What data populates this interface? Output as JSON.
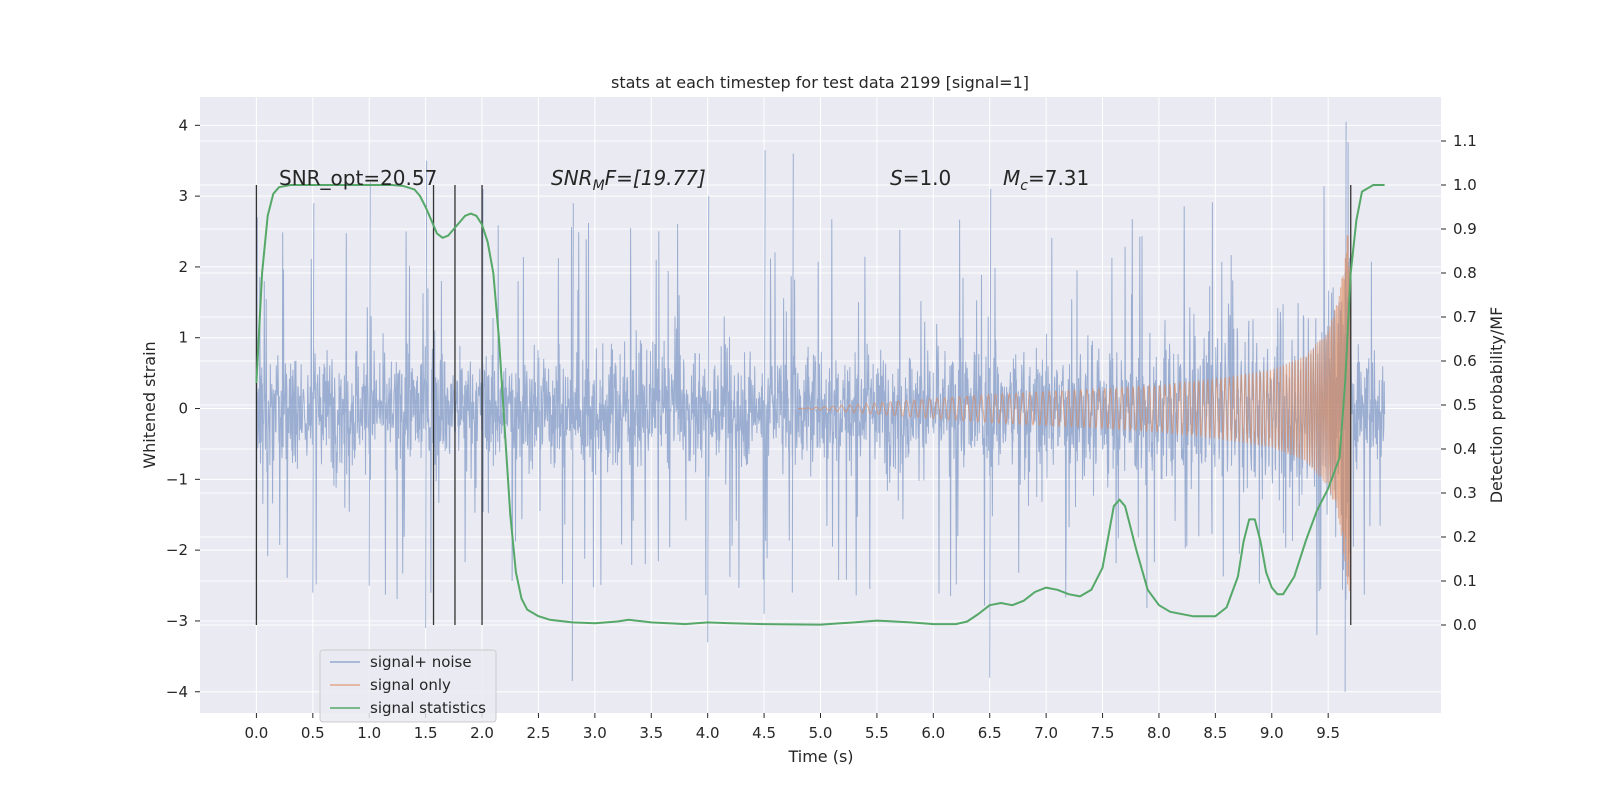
{
  "chart_data": {
    "type": "line",
    "title": "stats at each timestep for test data 2199 [signal=1]",
    "xlabel": "Time (s)",
    "ylabel_left": "Whitened strain",
    "ylabel_right": "Detection probability/MF",
    "xlim": [
      -0.5,
      10.5
    ],
    "ylim_left": [
      -4.3,
      4.4
    ],
    "ylim_right": [
      -0.2,
      1.2
    ],
    "xticks": [
      0.0,
      0.5,
      1.0,
      1.5,
      2.0,
      2.5,
      3.0,
      3.5,
      4.0,
      4.5,
      5.0,
      5.5,
      6.0,
      6.5,
      7.0,
      7.5,
      8.0,
      8.5,
      9.0,
      9.5
    ],
    "xtick_labels": [
      "0.0",
      "0.5",
      "1.0",
      "1.5",
      "2.0",
      "2.5",
      "3.0",
      "3.5",
      "4.0",
      "4.5",
      "5.0",
      "5.5",
      "6.0",
      "6.5",
      "7.0",
      "7.5",
      "8.0",
      "8.5",
      "9.0",
      "9.5"
    ],
    "yticks_left": [
      4,
      3,
      2,
      1,
      0,
      -1,
      -2,
      -3,
      -4
    ],
    "ytick_labels_left": [
      "4",
      "3",
      "2",
      "1",
      "0",
      "−1",
      "−2",
      "−3",
      "−4"
    ],
    "yticks_right": [
      1.1,
      1.0,
      0.9,
      0.8,
      0.7,
      0.6,
      0.5,
      0.4,
      0.3,
      0.2,
      0.1,
      0.0
    ],
    "ytick_labels_right": [
      "1.1",
      "1.0",
      "0.9",
      "0.8",
      "0.7",
      "0.6",
      "0.5",
      "0.4",
      "0.3",
      "0.2",
      "0.1",
      "0.0"
    ],
    "grid": true,
    "legend_position": "lower-left",
    "series": [
      {
        "name": "signal+ noise",
        "color": "#4c72b0",
        "style": "noisy strain trace, roughly ±1.3 dense band with spikes to about ±3, largest excursions near 9.65 s (+4.05, −4.0)",
        "x_range": [
          0.0,
          10.0
        ],
        "envelope_points": [
          {
            "x": 0.0,
            "max": 2.7,
            "min": -2.4
          },
          {
            "x": 0.5,
            "max": 2.9,
            "min": -2.6
          },
          {
            "x": 1.0,
            "max": 3.2,
            "min": -2.5
          },
          {
            "x": 1.5,
            "max": 3.5,
            "min": -3.1
          },
          {
            "x": 2.0,
            "max": 3.1,
            "min": -2.9
          },
          {
            "x": 2.8,
            "max": 2.9,
            "min": -3.85
          },
          {
            "x": 4.0,
            "max": 3.0,
            "min": -3.3
          },
          {
            "x": 4.5,
            "max": 3.65,
            "min": -2.9
          },
          {
            "x": 4.75,
            "max": 3.6,
            "min": -2.6
          },
          {
            "x": 6.5,
            "max": 3.1,
            "min": -3.8
          },
          {
            "x": 9.65,
            "max": 4.05,
            "min": -4.0
          }
        ]
      },
      {
        "name": "signal only",
        "color": "#dd8452",
        "style": "chirp oscillation growing from zero around 4.8 s to large amplitude at merger, then stops",
        "chirp_start_time": 4.8,
        "merger_time": 9.7,
        "amplitude_points": [
          {
            "x": 4.8,
            "a": 0.0
          },
          {
            "x": 5.5,
            "a": 0.08
          },
          {
            "x": 6.0,
            "a": 0.14
          },
          {
            "x": 6.5,
            "a": 0.2
          },
          {
            "x": 7.0,
            "a": 0.24
          },
          {
            "x": 7.5,
            "a": 0.28
          },
          {
            "x": 8.0,
            "a": 0.33
          },
          {
            "x": 8.5,
            "a": 0.42
          },
          {
            "x": 9.0,
            "a": 0.55
          },
          {
            "x": 9.3,
            "a": 0.75
          },
          {
            "x": 9.5,
            "a": 1.1
          },
          {
            "x": 9.6,
            "a": 1.6
          },
          {
            "x": 9.68,
            "a": 2.6
          }
        ]
      },
      {
        "name": "signal statistics",
        "color": "#55a868",
        "axis": "right",
        "x": [
          0.0,
          0.05,
          0.1,
          0.15,
          0.2,
          0.3,
          0.5,
          0.8,
          1.0,
          1.2,
          1.3,
          1.4,
          1.45,
          1.5,
          1.55,
          1.6,
          1.65,
          1.7,
          1.75,
          1.8,
          1.85,
          1.9,
          1.95,
          2.0,
          2.05,
          2.1,
          2.15,
          2.2,
          2.25,
          2.3,
          2.35,
          2.4,
          2.5,
          2.6,
          2.8,
          3.0,
          3.2,
          3.3,
          3.5,
          3.8,
          4.0,
          4.2,
          4.5,
          5.0,
          5.3,
          5.5,
          5.8,
          6.0,
          6.2,
          6.3,
          6.4,
          6.5,
          6.6,
          6.7,
          6.8,
          6.9,
          7.0,
          7.1,
          7.2,
          7.3,
          7.4,
          7.5,
          7.55,
          7.6,
          7.65,
          7.7,
          7.8,
          7.9,
          8.0,
          8.1,
          8.3,
          8.5,
          8.6,
          8.7,
          8.75,
          8.8,
          8.85,
          8.9,
          8.95,
          9.0,
          9.05,
          9.1,
          9.2,
          9.3,
          9.4,
          9.5,
          9.6,
          9.65,
          9.7,
          9.75,
          9.8,
          9.9,
          10.0
        ],
        "y": [
          0.55,
          0.8,
          0.93,
          0.98,
          0.995,
          1.0,
          1.0,
          1.0,
          1.0,
          1.0,
          0.998,
          0.99,
          0.975,
          0.95,
          0.92,
          0.89,
          0.88,
          0.885,
          0.9,
          0.915,
          0.93,
          0.935,
          0.93,
          0.91,
          0.87,
          0.8,
          0.65,
          0.45,
          0.25,
          0.12,
          0.06,
          0.035,
          0.02,
          0.012,
          0.006,
          0.004,
          0.008,
          0.012,
          0.006,
          0.002,
          0.006,
          0.004,
          0.002,
          0.001,
          0.006,
          0.01,
          0.006,
          0.002,
          0.002,
          0.008,
          0.025,
          0.045,
          0.05,
          0.045,
          0.055,
          0.075,
          0.085,
          0.08,
          0.07,
          0.065,
          0.08,
          0.13,
          0.2,
          0.27,
          0.285,
          0.27,
          0.17,
          0.08,
          0.045,
          0.03,
          0.02,
          0.02,
          0.04,
          0.11,
          0.19,
          0.24,
          0.24,
          0.19,
          0.12,
          0.085,
          0.07,
          0.07,
          0.11,
          0.19,
          0.26,
          0.31,
          0.38,
          0.55,
          0.8,
          0.92,
          0.985,
          1.0,
          1.0
        ]
      }
    ],
    "vertical_lines": [
      0.0,
      1.57,
      1.76,
      2.0,
      9.7
    ],
    "vertical_lines_color": "#333333",
    "annotations": {
      "snr_opt": "SNR_opt=20.57",
      "snr_mf_base": "SNR",
      "snr_mf_sub": "M",
      "snr_mf_rest": "F=[19.77]",
      "s_var": "S",
      "s_value": "=1.0",
      "mc_var": "M",
      "mc_sub": "c",
      "mc_value": "=7.31"
    },
    "colors": {
      "figure_bg": "#ffffff",
      "axes_bg": "#eaeaf2",
      "grid": "#ffffff"
    }
  }
}
